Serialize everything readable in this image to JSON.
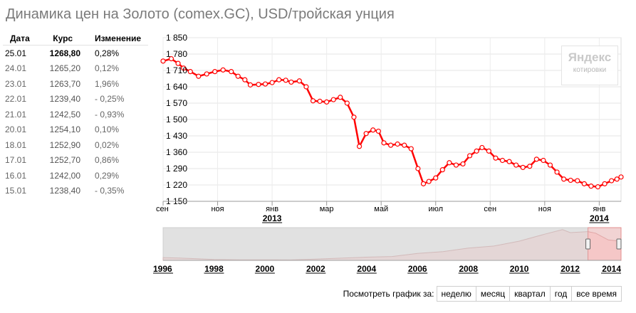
{
  "title": "Динамика цен на Золото (comex.GC), USD/тройская унция",
  "table": {
    "headers": [
      "Дата",
      "Курс",
      "Изменение"
    ],
    "rows": [
      {
        "date": "25.01",
        "rate": "1268,80",
        "change": "0,28%"
      },
      {
        "date": "24.01",
        "rate": "1265,20",
        "change": "0,12%"
      },
      {
        "date": "23.01",
        "rate": "1263,70",
        "change": "1,96%"
      },
      {
        "date": "22.01",
        "rate": "1239,40",
        "change": "- 0,25%"
      },
      {
        "date": "21.01",
        "rate": "1242,50",
        "change": "- 0,93%"
      },
      {
        "date": "20.01",
        "rate": "1254,10",
        "change": "0,10%"
      },
      {
        "date": "18.01",
        "rate": "1252,90",
        "change": "0,02%"
      },
      {
        "date": "17.01",
        "rate": "1252,70",
        "change": "0,86%"
      },
      {
        "date": "16.01",
        "rate": "1242,00",
        "change": "0,29%"
      },
      {
        "date": "15.01",
        "rate": "1238,40",
        "change": "- 0,35%"
      }
    ]
  },
  "logo": {
    "brand": "Яндекс",
    "sub": "котировки"
  },
  "chart_data": [
    {
      "type": "line",
      "ylim": [
        1150,
        1850
      ],
      "y_ticks": [
        "1 850",
        "1 780",
        "1 710",
        "1 640",
        "1 570",
        "1 500",
        "1 430",
        "1 360",
        "1 290",
        "1 220",
        "1 150"
      ],
      "x_tick_labels": [
        "сен",
        "ноя",
        "янв",
        "мар",
        "май",
        "июл",
        "сен",
        "ноя",
        "янв"
      ],
      "year_labels": [
        "2013",
        "2014"
      ],
      "x_range": [
        0,
        16.8
      ],
      "x_ticks": [
        0,
        2,
        4,
        6,
        8,
        10,
        12,
        14,
        16
      ],
      "x_year_ticks": [
        4,
        16
      ],
      "color": "#ff0000",
      "points": [
        [
          0.0,
          1750
        ],
        [
          0.3,
          1760
        ],
        [
          0.55,
          1740
        ],
        [
          0.75,
          1720
        ],
        [
          1.0,
          1705
        ],
        [
          1.3,
          1685
        ],
        [
          1.6,
          1695
        ],
        [
          1.9,
          1705
        ],
        [
          2.2,
          1712
        ],
        [
          2.5,
          1705
        ],
        [
          2.75,
          1685
        ],
        [
          3.0,
          1670
        ],
        [
          3.2,
          1648
        ],
        [
          3.5,
          1650
        ],
        [
          3.75,
          1652
        ],
        [
          4.0,
          1658
        ],
        [
          4.25,
          1670
        ],
        [
          4.5,
          1668
        ],
        [
          4.7,
          1660
        ],
        [
          5.0,
          1665
        ],
        [
          5.25,
          1640
        ],
        [
          5.5,
          1580
        ],
        [
          5.75,
          1578
        ],
        [
          6.0,
          1575
        ],
        [
          6.25,
          1585
        ],
        [
          6.5,
          1595
        ],
        [
          6.75,
          1570
        ],
        [
          7.0,
          1510
        ],
        [
          7.2,
          1385
        ],
        [
          7.45,
          1440
        ],
        [
          7.7,
          1455
        ],
        [
          7.9,
          1450
        ],
        [
          8.1,
          1400
        ],
        [
          8.35,
          1390
        ],
        [
          8.6,
          1395
        ],
        [
          8.85,
          1390
        ],
        [
          9.1,
          1375
        ],
        [
          9.35,
          1290
        ],
        [
          9.55,
          1225
        ],
        [
          9.75,
          1235
        ],
        [
          10.0,
          1250
        ],
        [
          10.25,
          1285
        ],
        [
          10.5,
          1315
        ],
        [
          10.75,
          1305
        ],
        [
          11.0,
          1310
        ],
        [
          11.25,
          1345
        ],
        [
          11.5,
          1365
        ],
        [
          11.7,
          1380
        ],
        [
          11.95,
          1365
        ],
        [
          12.2,
          1335
        ],
        [
          12.45,
          1325
        ],
        [
          12.7,
          1320
        ],
        [
          12.95,
          1305
        ],
        [
          13.2,
          1295
        ],
        [
          13.45,
          1300
        ],
        [
          13.7,
          1330
        ],
        [
          13.95,
          1325
        ],
        [
          14.2,
          1305
        ],
        [
          14.45,
          1275
        ],
        [
          14.7,
          1245
        ],
        [
          14.95,
          1240
        ],
        [
          15.2,
          1238
        ],
        [
          15.45,
          1225
        ],
        [
          15.7,
          1215
        ],
        [
          15.95,
          1212
        ],
        [
          16.2,
          1225
        ],
        [
          16.45,
          1238
        ],
        [
          16.65,
          1245
        ],
        [
          16.8,
          1254
        ]
      ]
    },
    {
      "type": "area",
      "x_tick_labels": [
        "1996",
        "1998",
        "2000",
        "2002",
        "2004",
        "2006",
        "2008",
        "2010",
        "2012",
        "2014"
      ],
      "x_range": [
        1996,
        2014
      ],
      "ylim": [
        250,
        1900
      ],
      "selection": [
        2012.7,
        2014
      ],
      "points": [
        [
          1996,
          390
        ],
        [
          1997,
          350
        ],
        [
          1998,
          295
        ],
        [
          1999,
          280
        ],
        [
          2000,
          280
        ],
        [
          2001,
          270
        ],
        [
          2002,
          310
        ],
        [
          2003,
          360
        ],
        [
          2004,
          410
        ],
        [
          2005,
          445
        ],
        [
          2006,
          600
        ],
        [
          2007,
          690
        ],
        [
          2008,
          870
        ],
        [
          2009,
          970
        ],
        [
          2010,
          1220
        ],
        [
          2011,
          1570
        ],
        [
          2011.7,
          1800
        ],
        [
          2012,
          1650
        ],
        [
          2012.7,
          1700
        ],
        [
          2013,
          1620
        ],
        [
          2013.5,
          1280
        ],
        [
          2013.9,
          1230
        ],
        [
          2014,
          1255
        ]
      ]
    }
  ],
  "range_bar": {
    "caption": "Посмотреть график за:",
    "buttons": [
      "неделю",
      "месяц",
      "квартал",
      "год",
      "все время"
    ]
  }
}
